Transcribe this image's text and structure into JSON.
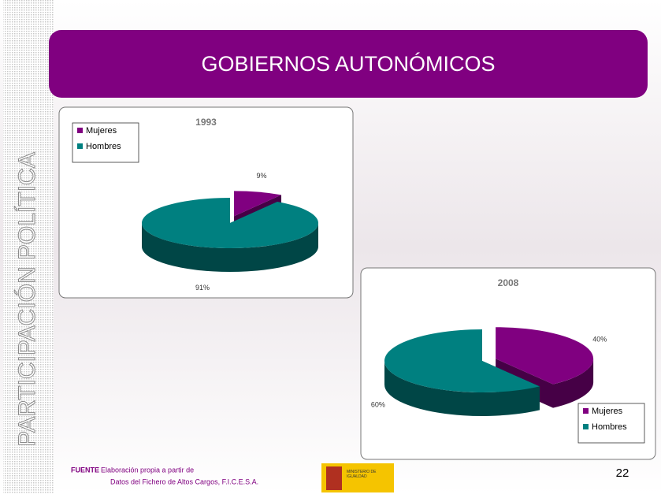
{
  "header": {
    "title": "GOBIERNOS AUTONÓMICOS"
  },
  "sidebar": {
    "text": "PARTICIPACIÓN POLÍTICA"
  },
  "chart_data": [
    {
      "type": "pie",
      "title": "1993",
      "categories": [
        "Mujeres",
        "Hombres"
      ],
      "values": [
        9,
        91
      ],
      "value_labels": [
        "9%",
        "91%"
      ],
      "colors": [
        "#800080",
        "#008080"
      ],
      "legend": "top-left"
    },
    {
      "type": "pie",
      "title": "2008",
      "categories": [
        "Mujeres",
        "Hombres"
      ],
      "values": [
        40,
        60
      ],
      "value_labels": [
        "40%",
        "60%"
      ],
      "colors": [
        "#800080",
        "#008080"
      ],
      "legend": "bottom-right"
    }
  ],
  "footer": {
    "label": "FUENTE",
    "line1": ": Elaboración propia a partir de",
    "line2": "Datos del Fichero de Altos Cargos,  F.I.C.E.S.A.",
    "logo": "MINISTERIO DE IGUALDAD"
  },
  "page_number": "22"
}
